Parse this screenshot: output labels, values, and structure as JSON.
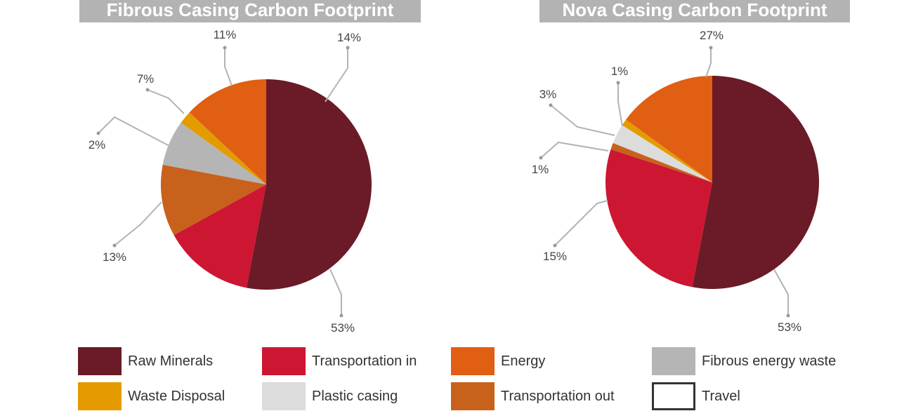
{
  "chart_data": [
    {
      "type": "pie",
      "title": "Fibrous Casing Carbon Footprint",
      "slices": [
        {
          "category": "Raw Minerals",
          "value": 53,
          "label": "53%",
          "color": "#6a1b27"
        },
        {
          "category": "Energy",
          "value": 13,
          "label": "13%",
          "color": "#e05f12"
        },
        {
          "category": "Waste Disposal",
          "value": 2,
          "label": "2%",
          "color": "#e49b00"
        },
        {
          "category": "Fibrous energy waste",
          "value": 7,
          "label": "7%",
          "color": "#b5b5b5"
        },
        {
          "category": "Transportation out",
          "value": 11,
          "label": "11%",
          "color": "#c8611c"
        },
        {
          "category": "Transportation in",
          "value": 14,
          "label": "14%",
          "color": "#cd1632"
        }
      ]
    },
    {
      "type": "pie",
      "title": "Nova Casing Carbon Footprint",
      "slices": [
        {
          "category": "Raw Minerals",
          "value": 53,
          "label": "53%",
          "color": "#6a1b27"
        },
        {
          "category": "Energy",
          "value": 15,
          "label": "15%",
          "color": "#e05f12"
        },
        {
          "category": "Waste Disposal",
          "value": 1,
          "label": "1%",
          "color": "#e49b00"
        },
        {
          "category": "Plastic casing",
          "value": 3,
          "label": "3%",
          "color": "#dcdcdc"
        },
        {
          "category": "Transportation out",
          "value": 1,
          "label": "1%",
          "color": "#c8611c"
        },
        {
          "category": "Transportation in",
          "value": 27,
          "label": "27%",
          "color": "#cd1632"
        }
      ]
    }
  ],
  "legend": [
    {
      "label": "Raw Minerals",
      "color": "#6a1b27"
    },
    {
      "label": "Transportation in",
      "color": "#cd1632"
    },
    {
      "label": "Energy",
      "color": "#e05f12"
    },
    {
      "label": "Fibrous energy waste",
      "color": "#b5b5b5"
    },
    {
      "label": "Waste Disposal",
      "color": "#e49b00"
    },
    {
      "label": "Plastic casing",
      "color": "#dcdcdc"
    },
    {
      "label": "Transportation out",
      "color": "#c8611c"
    },
    {
      "label": "Travel",
      "color": "#ffffff"
    }
  ]
}
